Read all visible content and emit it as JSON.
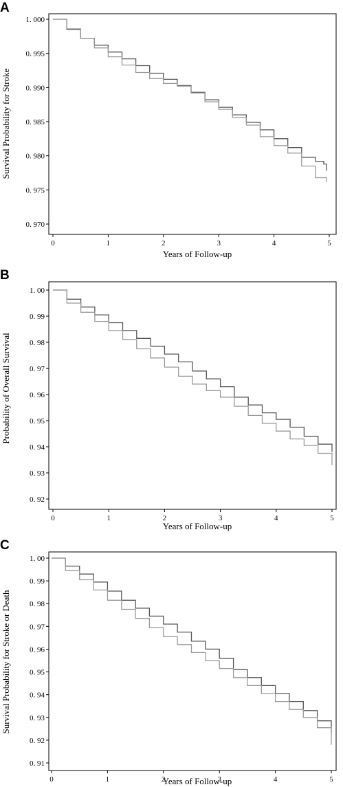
{
  "colors": {
    "series_dark": "#555555",
    "series_light": "#999999",
    "axis": "#000000"
  },
  "chart_data": [
    {
      "type": "line",
      "panel": "A",
      "xlabel": "Years of Follow-up",
      "ylabel": "Survival Probability for Stroke",
      "xlim": [
        0,
        5
      ],
      "ylim": [
        0.97,
        1.0
      ],
      "x_ticks": [
        {
          "value": 0,
          "label": "0"
        },
        {
          "value": 1,
          "label": "1"
        },
        {
          "value": 2,
          "label": "2"
        },
        {
          "value": 3,
          "label": "3"
        },
        {
          "value": 4,
          "label": "4"
        },
        {
          "value": 5,
          "label": "5"
        }
      ],
      "y_ticks": [
        {
          "value": 0.97,
          "label": "0. 970"
        },
        {
          "value": 0.975,
          "label": "0. 975"
        },
        {
          "value": 0.98,
          "label": "0. 980"
        },
        {
          "value": 0.985,
          "label": "0. 985"
        },
        {
          "value": 0.99,
          "label": "0. 990"
        },
        {
          "value": 0.995,
          "label": "0. 995"
        },
        {
          "value": 1.0,
          "label": "1. 000"
        }
      ],
      "series": [
        {
          "x": [
            0,
            0.25,
            0.5,
            0.75,
            1.0,
            1.25,
            1.5,
            1.75,
            2.0,
            2.25,
            2.5,
            2.75,
            3.0,
            3.25,
            3.5,
            3.75,
            4.0,
            4.25,
            4.5,
            4.75,
            4.9,
            4.95
          ],
          "y": [
            1.0,
            0.9985,
            0.9972,
            0.9962,
            0.9952,
            0.9942,
            0.9932,
            0.9921,
            0.9912,
            0.9903,
            0.9893,
            0.9882,
            0.9871,
            0.986,
            0.9849,
            0.9838,
            0.9825,
            0.9812,
            0.9798,
            0.9792,
            0.9788,
            0.9778
          ]
        },
        {
          "x": [
            0,
            0.25,
            0.5,
            0.75,
            1.0,
            1.25,
            1.5,
            1.75,
            2.0,
            2.25,
            2.5,
            2.75,
            3.0,
            3.25,
            3.5,
            3.75,
            4.0,
            4.25,
            4.5,
            4.75,
            4.95
          ],
          "y": [
            1.0,
            0.9986,
            0.9972,
            0.9958,
            0.9945,
            0.9933,
            0.9922,
            0.9913,
            0.9906,
            0.9902,
            0.9892,
            0.9879,
            0.9868,
            0.9856,
            0.9845,
            0.9828,
            0.9815,
            0.9804,
            0.9785,
            0.9768,
            0.9762
          ]
        }
      ]
    },
    {
      "type": "line",
      "panel": "B",
      "xlabel": "Years of Follow-up",
      "ylabel": "Probability of Overall Survival",
      "xlim": [
        0,
        5
      ],
      "ylim": [
        0.92,
        1.0
      ],
      "x_ticks": [
        {
          "value": 0,
          "label": "0"
        },
        {
          "value": 1,
          "label": "1"
        },
        {
          "value": 2,
          "label": "2"
        },
        {
          "value": 3,
          "label": "3"
        },
        {
          "value": 4,
          "label": "4"
        },
        {
          "value": 5,
          "label": "5"
        }
      ],
      "y_ticks": [
        {
          "value": 0.92,
          "label": "0. 92"
        },
        {
          "value": 0.93,
          "label": "0. 93"
        },
        {
          "value": 0.94,
          "label": "0. 94"
        },
        {
          "value": 0.95,
          "label": "0. 95"
        },
        {
          "value": 0.96,
          "label": "0. 96"
        },
        {
          "value": 0.97,
          "label": "0. 97"
        },
        {
          "value": 0.98,
          "label": "0. 98"
        },
        {
          "value": 0.99,
          "label": "0. 99"
        },
        {
          "value": 1.0,
          "label": "1. 00"
        }
      ],
      "series": [
        {
          "x": [
            0,
            0.25,
            0.5,
            0.75,
            1.0,
            1.25,
            1.5,
            1.75,
            2.0,
            2.25,
            2.5,
            2.75,
            3.0,
            3.25,
            3.5,
            3.75,
            4.0,
            4.25,
            4.5,
            4.75,
            5.0
          ],
          "y": [
            1.0,
            0.9965,
            0.9935,
            0.9905,
            0.9875,
            0.9845,
            0.9815,
            0.9785,
            0.9755,
            0.9725,
            0.969,
            0.966,
            0.963,
            0.959,
            0.956,
            0.953,
            0.9505,
            0.9475,
            0.944,
            0.941,
            0.938
          ]
        },
        {
          "x": [
            0,
            0.25,
            0.5,
            0.75,
            1.0,
            1.25,
            1.5,
            1.75,
            2.0,
            2.25,
            2.5,
            2.75,
            3.0,
            3.25,
            3.5,
            3.75,
            4.0,
            4.25,
            4.5,
            4.75,
            5.0
          ],
          "y": [
            1.0,
            0.995,
            0.9915,
            0.988,
            0.9845,
            0.981,
            0.9775,
            0.974,
            0.9705,
            0.967,
            0.964,
            0.9615,
            0.959,
            0.9555,
            0.952,
            0.949,
            0.946,
            0.943,
            0.9405,
            0.9375,
            0.933
          ]
        }
      ]
    },
    {
      "type": "line",
      "panel": "C",
      "xlabel": "Years of Follow-up",
      "ylabel": "Survival Probability for Stroke or Death",
      "xlim": [
        0,
        5
      ],
      "ylim": [
        0.91,
        1.0
      ],
      "x_ticks": [
        {
          "value": 0,
          "label": "0"
        },
        {
          "value": 1,
          "label": "1"
        },
        {
          "value": 2,
          "label": "2"
        },
        {
          "value": 3,
          "label": "3"
        },
        {
          "value": 4,
          "label": "4"
        },
        {
          "value": 5,
          "label": "5"
        }
      ],
      "y_ticks": [
        {
          "value": 0.91,
          "label": "0. 91"
        },
        {
          "value": 0.92,
          "label": "0. 92"
        },
        {
          "value": 0.93,
          "label": "0. 93"
        },
        {
          "value": 0.94,
          "label": "0. 94"
        },
        {
          "value": 0.95,
          "label": "0. 95"
        },
        {
          "value": 0.96,
          "label": "0. 96"
        },
        {
          "value": 0.97,
          "label": "0. 97"
        },
        {
          "value": 0.98,
          "label": "0. 98"
        },
        {
          "value": 0.99,
          "label": "0. 99"
        },
        {
          "value": 1.0,
          "label": "1. 00"
        }
      ],
      "series": [
        {
          "x": [
            0,
            0.25,
            0.5,
            0.75,
            1.0,
            1.25,
            1.5,
            1.75,
            2.0,
            2.25,
            2.5,
            2.75,
            3.0,
            3.25,
            3.5,
            3.75,
            4.0,
            4.25,
            4.5,
            4.75,
            5.0
          ],
          "y": [
            1.0,
            0.9965,
            0.993,
            0.9895,
            0.9855,
            0.9815,
            0.978,
            0.9745,
            0.971,
            0.9675,
            0.9635,
            0.96,
            0.956,
            0.951,
            0.9475,
            0.944,
            0.9405,
            0.937,
            0.933,
            0.9285,
            0.923
          ]
        },
        {
          "x": [
            0,
            0.25,
            0.5,
            0.75,
            1.0,
            1.25,
            1.5,
            1.75,
            2.0,
            2.25,
            2.5,
            2.75,
            3.0,
            3.25,
            3.5,
            3.75,
            4.0,
            4.25,
            4.5,
            4.75,
            5.0
          ],
          "y": [
            1.0,
            0.9945,
            0.9905,
            0.986,
            0.9815,
            0.9775,
            0.9735,
            0.9695,
            0.9655,
            0.962,
            0.9585,
            0.955,
            0.9515,
            0.9475,
            0.944,
            0.9405,
            0.937,
            0.9335,
            0.93,
            0.9255,
            0.918
          ]
        }
      ]
    }
  ]
}
